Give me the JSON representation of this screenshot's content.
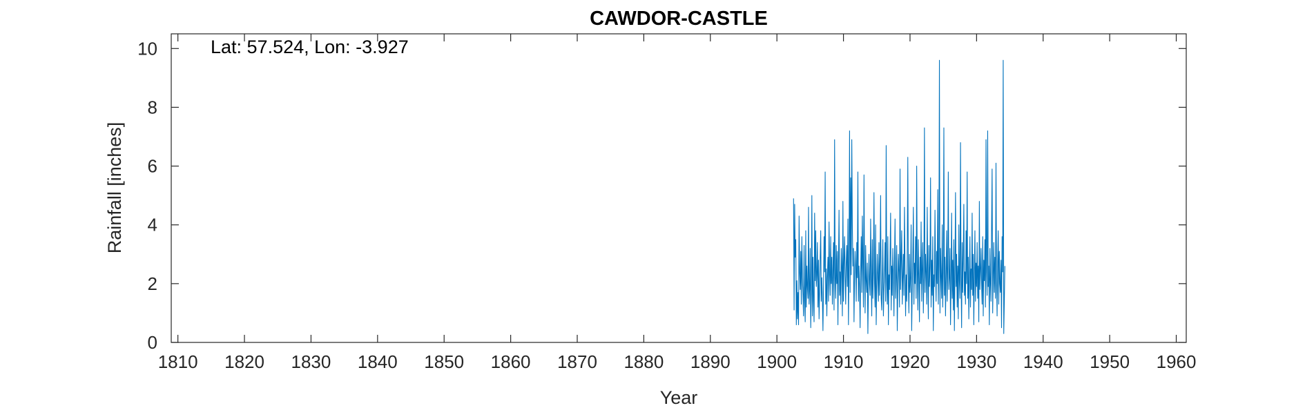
{
  "chart_data": {
    "type": "line",
    "title": "CAWDOR-CASTLE",
    "xlabel": "Year",
    "ylabel": "Rainfall [inches]",
    "annotation": "Lat: 57.524, Lon: -3.927",
    "xlim": [
      1809,
      1961.5
    ],
    "ylim": [
      0,
      10.5
    ],
    "xticks": [
      1810,
      1820,
      1830,
      1840,
      1850,
      1860,
      1870,
      1880,
      1890,
      1900,
      1910,
      1920,
      1930,
      1940,
      1950,
      1960
    ],
    "yticks": [
      0,
      2,
      4,
      6,
      8,
      10
    ],
    "grid": false,
    "legend": "none",
    "series": [
      {
        "color": "#0072BD",
        "x_start": 1902.5,
        "x_step": 0.0833333,
        "values": [
          4.9,
          1.1,
          4.7,
          2.9,
          3.5,
          0.6,
          2.1,
          0.8,
          1.7,
          0.6,
          4.3,
          2.4,
          1.8,
          3.1,
          1.3,
          3.6,
          2.2,
          1.6,
          0.9,
          3.3,
          1.4,
          0.7,
          3.8,
          1.2,
          2.6,
          1.9,
          1.5,
          4.6,
          1.3,
          1.8,
          3.2,
          0.5,
          1.7,
          5.0,
          0.9,
          2.9,
          1.4,
          0.7,
          4.4,
          2.1,
          3.8,
          1.9,
          2.3,
          3.4,
          1.2,
          2.8,
          0.8,
          1.7,
          2.9,
          3.8,
          1.4,
          2.2,
          1.5,
          0.4,
          1.9,
          3.6,
          2.4,
          5.8,
          1.3,
          2.5,
          0.9,
          2.2,
          2.9,
          1.4,
          4.1,
          2.3,
          1.6,
          3.6,
          2.0,
          2.9,
          1.3,
          2.4,
          3.4,
          1.1,
          6.9,
          2.2,
          1.5,
          3.3,
          2.0,
          3.1,
          0.6,
          2.5,
          4.5,
          1.6,
          2.4,
          1.3,
          3.2,
          2.6,
          0.9,
          4.8,
          1.4,
          2.7,
          3.6,
          2.3,
          1.3,
          2.7,
          3.3,
          1.9,
          4.2,
          0.6,
          2.8,
          7.2,
          1.7,
          5.6,
          2.3,
          6.9,
          4.0,
          2.6,
          3.2,
          0.7,
          2.3,
          3.1,
          2.5,
          1.4,
          3.4,
          2.2,
          5.8,
          1.4,
          2.6,
          1.9,
          0.5,
          2.4,
          3.6,
          1.7,
          4.3,
          2.7,
          1.2,
          5.7,
          2.4,
          1.0,
          3.3,
          2.1,
          1.7,
          2.7,
          0.3,
          1.8,
          3.0,
          2.0,
          1.6,
          4.2,
          2.2,
          0.9,
          3.5,
          1.5,
          2.4,
          5.1,
          2.0,
          1.2,
          4.0,
          0.6,
          1.9,
          3.0,
          2.2,
          1.4,
          3.4,
          1.6,
          2.8,
          5.0,
          1.5,
          1.1,
          2.2,
          3.5,
          0.9,
          1.8,
          2.4,
          3.4,
          1.4,
          6.7,
          2.0,
          1.3,
          3.6,
          0.6,
          2.3,
          1.8,
          3.0,
          4.4,
          1.1,
          2.6,
          1.6,
          3.2,
          2.4,
          0.9,
          2.7,
          4.2,
          1.5,
          2.2,
          3.3,
          0.4,
          1.9,
          3.0,
          2.4,
          1.2,
          5.9,
          1.8,
          2.8,
          3.8,
          1.3,
          2.2,
          3.0,
          1.6,
          4.6,
          2.5,
          0.9,
          2.3,
          1.4,
          3.1,
          6.3,
          2.0,
          1.0,
          3.0,
          1.7,
          2.2,
          4.0,
          0.4,
          1.8,
          2.9,
          4.6,
          1.3,
          2.7,
          2.0,
          3.6,
          1.5,
          6.0,
          2.6,
          1.1,
          3.5,
          2.2,
          0.7,
          2.9,
          2.0,
          4.1,
          1.4,
          2.5,
          3.4,
          1.0,
          2.2,
          7.3,
          1.7,
          3.0,
          2.4,
          1.3,
          4.6,
          2.1,
          0.8,
          3.3,
          1.9,
          2.6,
          5.6,
          1.2,
          2.8,
          1.6,
          3.6,
          0.4,
          2.3,
          1.9,
          4.5,
          2.5,
          1.4,
          3.1,
          2.0,
          5.2,
          1.3,
          2.6,
          9.6,
          1.0,
          3.2,
          2.2,
          1.5,
          4.0,
          1.2,
          2.4,
          7.3,
          1.6,
          2.9,
          0.9,
          2.3,
          3.8,
          1.4,
          2.6,
          5.8,
          1.8,
          2.2,
          3.2,
          0.6,
          2.0,
          4.4,
          1.5,
          2.8,
          1.1,
          3.5,
          0.4,
          2.4,
          5.1,
          1.9,
          3.0,
          1.2,
          2.6,
          0.8,
          4.0,
          2.1,
          1.5,
          6.8,
          2.3,
          0.5,
          3.4,
          1.7,
          2.9,
          4.7,
          1.6,
          2.4,
          1.3,
          3.8,
          2.0,
          5.8,
          1.5,
          2.9,
          0.8,
          2.2,
          3.6,
          1.2,
          2.5,
          1.8,
          4.4,
          1.6,
          3.0,
          0.6,
          2.3,
          3.8,
          1.4,
          2.7,
          1.9,
          3.4,
          1.5,
          2.6,
          0.7,
          4.8,
          1.8,
          2.4,
          3.2,
          2.0,
          1.3,
          3.6,
          0.9,
          2.8,
          2.1,
          3.5,
          1.2,
          6.9,
          2.4,
          1.6,
          7.2,
          1.9,
          2.6,
          0.6,
          3.2,
          2.1,
          1.4,
          3.8,
          5.9,
          1.0,
          2.3,
          3.4,
          1.7,
          2.9,
          1.5,
          6.1,
          2.2,
          0.9,
          2.7,
          3.8,
          1.3,
          3.1,
          2.0,
          1.7,
          2.8,
          0.5,
          3.6,
          2.4,
          9.6,
          0.3,
          1.4,
          2.6
        ]
      }
    ]
  }
}
